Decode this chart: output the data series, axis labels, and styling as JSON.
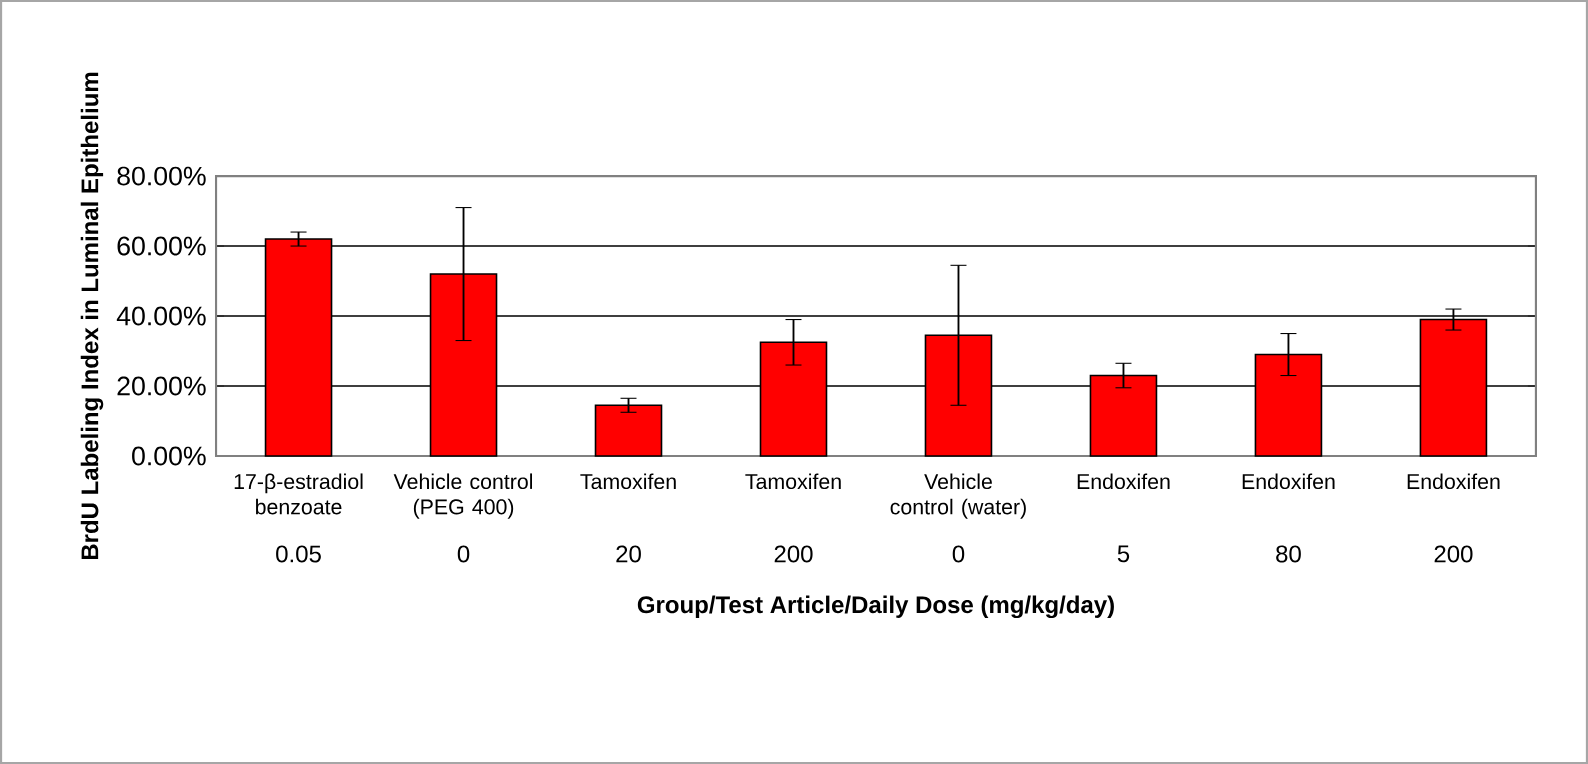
{
  "chart_data": {
    "type": "bar",
    "categories": [
      "17-β-estradiol benzoate",
      "Vehicle control (PEG 400)",
      "Tamoxifen",
      "Tamoxifen",
      "Vehicle control (water)",
      "Endoxifen",
      "Endoxifen",
      "Endoxifen"
    ],
    "values": [
      0.62,
      0.52,
      0.145,
      0.325,
      0.345,
      0.23,
      0.29,
      0.39
    ],
    "errors": [
      0.02,
      0.19,
      0.02,
      0.065,
      0.2,
      0.035,
      0.06,
      0.03
    ],
    "color": "#ff0000",
    "ylabel": "BrdU Labeling Index in Luminal Epithelium",
    "xlabel": "Group/Test Article/Daily Dose (mg/kg/day)",
    "annotations": [
      "0.05",
      "0",
      "20",
      "200",
      "0",
      "5",
      "80",
      "200"
    ],
    "ylim": [
      0,
      0.8
    ],
    "yticks": [
      {
        "value": 0,
        "label": "0.00%"
      },
      {
        "value": 0.2,
        "label": "20.00%"
      },
      {
        "value": 0.4,
        "label": "40.00%"
      },
      {
        "value": 0.6,
        "label": "60.00%"
      },
      {
        "value": 0.8,
        "label": "80.00%"
      }
    ],
    "grid": "y"
  }
}
